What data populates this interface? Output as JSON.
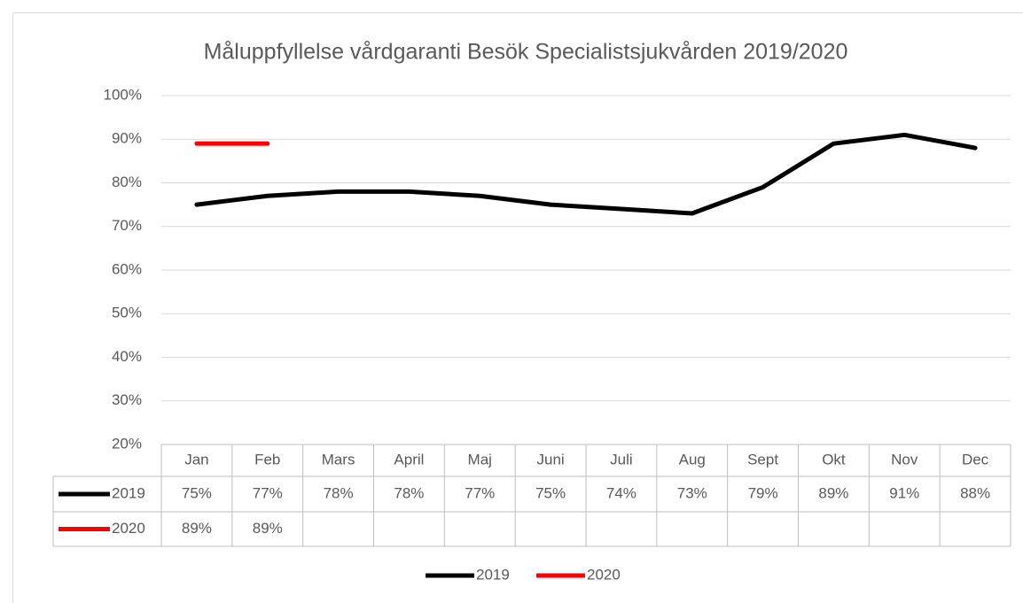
{
  "chart_data": {
    "type": "line",
    "title": "Måluppfyllelse vårdgaranti Besök Specialistsjukvården 2019/2020",
    "categories": [
      "Jan",
      "Feb",
      "Mars",
      "April",
      "Maj",
      "Juni",
      "Juli",
      "Aug",
      "Sept",
      "Okt",
      "Nov",
      "Dec"
    ],
    "series": [
      {
        "name": "2019",
        "color": "#000000",
        "values": [
          75,
          77,
          78,
          78,
          77,
          75,
          74,
          73,
          79,
          89,
          91,
          88
        ],
        "value_labels": [
          "75%",
          "77%",
          "78%",
          "78%",
          "77%",
          "75%",
          "74%",
          "73%",
          "79%",
          "89%",
          "91%",
          "88%"
        ]
      },
      {
        "name": "2020",
        "color": "#ff0000",
        "values": [
          89,
          89,
          null,
          null,
          null,
          null,
          null,
          null,
          null,
          null,
          null,
          null
        ],
        "value_labels": [
          "89%",
          "89%",
          null,
          null,
          null,
          null,
          null,
          null,
          null,
          null,
          null,
          null
        ]
      }
    ],
    "ylim": [
      20,
      100
    ],
    "yticks": [
      {
        "value": 20,
        "label": "20%"
      },
      {
        "value": 30,
        "label": "30%"
      },
      {
        "value": 40,
        "label": "40%"
      },
      {
        "value": 50,
        "label": "50%"
      },
      {
        "value": 60,
        "label": "60%"
      },
      {
        "value": 70,
        "label": "70%"
      },
      {
        "value": 80,
        "label": "80%"
      },
      {
        "value": 90,
        "label": "90%"
      },
      {
        "value": 100,
        "label": "100%"
      }
    ],
    "grid": true,
    "legend": "bottom",
    "data_table": true
  }
}
